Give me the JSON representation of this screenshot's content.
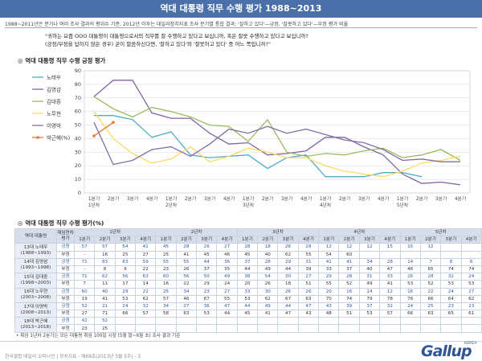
{
  "header": {
    "title": "역대 대통령 직무 수행 평가 1988~2013"
  },
  "subtitle": "1988~2011년은 분기나 여러 조사 결과의 평위수 기준, 2012년 이후는 데일리정치지표 조사 분기별 통합 결과; '잘하고 있다'—긍정, '잘못하고 있다'—부정 평가 비율",
  "question": {
    "line1": "\"귀하는 요즘 OOO 대통령이 대통령으로서의 직무를 잘 수행하고 있다고 보십니까, 혹은 잘못 수행하고 있다고 보십니까?",
    "line2": "(긍정/부정을 답하지 않은 경우) 굳이 말씀하신다면, '잘하고 있다'와 '잘못하고 있다' 중 어느 쪽입니까?\""
  },
  "section1": "역대 대통령 직무 수행 긍정 평가",
  "section2": "역대 대통령 직무 수행 평가(%)",
  "colors": {
    "header": "#4b6fa8",
    "roh": "#4bacc6",
    "kimys": "#8064a2",
    "kimdj": "#9bbb59",
    "rohmh": "#ffd966",
    "lee": "#7f6fa8",
    "park": "#e07b39"
  },
  "chart_data": {
    "type": "line",
    "title": "",
    "xlabel": "",
    "ylabel": "",
    "ylim": [
      0,
      90
    ],
    "yticks": [
      0,
      10,
      20,
      30,
      40,
      50,
      60,
      70,
      80,
      90
    ],
    "x": [
      "1분기 1년차",
      "2분기",
      "3분기",
      "4분기",
      "1분기 2년차",
      "2분기",
      "3분기",
      "4분기",
      "1분기 3년차",
      "2분기",
      "3분기",
      "4분기",
      "1분기 4년차",
      "2분기",
      "3분기",
      "4분기",
      "1분기 5년차",
      "2분기",
      "3분기",
      "4분기"
    ],
    "x_labels": [
      [
        "1분기",
        "1년차"
      ],
      [
        "2분기"
      ],
      [
        "3분기"
      ],
      [
        "4분기"
      ],
      [
        "1분기",
        "2년차"
      ],
      [
        "2분기"
      ],
      [
        "3분기"
      ],
      [
        "4분기"
      ],
      [
        "1분기",
        "3년차"
      ],
      [
        "2분기"
      ],
      [
        "3분기"
      ],
      [
        "4분기"
      ],
      [
        "1분기",
        "4년차"
      ],
      [
        "2분기"
      ],
      [
        "3분기"
      ],
      [
        "4분기"
      ],
      [
        "1분기",
        "5년차"
      ],
      [
        "2분기"
      ],
      [
        "3분기"
      ],
      [
        "4분기"
      ]
    ],
    "legend_position": "left",
    "grid": true,
    "series": [
      {
        "name": "노태우",
        "color": "#4bacc6",
        "values": [
          57,
          57,
          54,
          41,
          45,
          28,
          26,
          27,
          28,
          18,
          26,
          28,
          12,
          12,
          12,
          15,
          15,
          12,
          null,
          null
        ]
      },
      {
        "name": "김영삼",
        "color": "#8064a2",
        "values": [
          71,
          83,
          83,
          59,
          55,
          55,
          44,
          36,
          37,
          28,
          29,
          31,
          41,
          41,
          34,
          28,
          14,
          7,
          8,
          6
        ]
      },
      {
        "name": "김대중",
        "color": "#9bbb59",
        "values": [
          71,
          62,
          56,
          63,
          60,
          56,
          50,
          49,
          38,
          54,
          30,
          27,
          29,
          28,
          31,
          33,
          26,
          28,
          32,
          24
        ]
      },
      {
        "name": "노무현",
        "color": "#ffd966",
        "values": [
          60,
          40,
          29,
          22,
          25,
          34,
          23,
          27,
          33,
          30,
          26,
          26,
          20,
          16,
          14,
          12,
          16,
          22,
          24,
          27
        ]
      },
      {
        "name": "이명박",
        "color": "#7f6fa8",
        "values": [
          52,
          21,
          24,
          32,
          34,
          27,
          36,
          47,
          44,
          49,
          44,
          47,
          43,
          39,
          37,
          32,
          24,
          25,
          23,
          23
        ]
      },
      {
        "name": "박근혜(%)",
        "color": "#e07b39",
        "values": [
          42,
          52,
          null,
          null,
          null,
          null,
          null,
          null,
          null,
          null,
          null,
          null,
          null,
          null,
          null,
          null,
          null,
          null,
          null,
          null
        ]
      }
    ]
  },
  "table": {
    "corner": "역대 대통령",
    "eval_header": "재임연차 평가",
    "years": [
      "1년차",
      "2년차",
      "3년차",
      "4년차",
      "5년차"
    ],
    "quarters": [
      "1분기",
      "2분기",
      "3분기",
      "4분기"
    ],
    "rows": [
      {
        "name": "13대 노태우",
        "period": "(1988~1993)",
        "pos": [
          "57",
          "57",
          "54",
          "41",
          "45",
          "28",
          "26",
          "27",
          "28",
          "18",
          "26",
          "28",
          "12",
          "12",
          "12",
          "15",
          "15",
          "12",
          "",
          ""
        ],
        "neg": [
          "-",
          "16",
          "25",
          "27",
          "25",
          "41",
          "45",
          "46",
          "45",
          "40",
          "62",
          "55",
          "54",
          "60",
          "",
          "",
          "",
          "",
          "",
          ""
        ]
      },
      {
        "name": "14대 김영삼",
        "period": "(1993~1998)",
        "pos": [
          "71",
          "83",
          "83",
          "59",
          "55",
          "55",
          "44",
          "36",
          "37",
          "28",
          "29",
          "31",
          "41",
          "41",
          "34",
          "28",
          "14",
          "7",
          "8",
          "6"
        ],
        "neg": [
          "-",
          "8",
          "9",
          "22",
          "23",
          "26",
          "37",
          "35",
          "44",
          "49",
          "44",
          "39",
          "33",
          "37",
          "40",
          "47",
          "46",
          "65",
          "74",
          "74"
        ]
      },
      {
        "name": "15대 김대중",
        "period": "(1998~2003)",
        "pos": [
          "71",
          "62",
          "56",
          "63",
          "60",
          "56",
          "50",
          "49",
          "38",
          "54",
          "30",
          "27",
          "29",
          "28",
          "31",
          "33",
          "26",
          "28",
          "32",
          "24"
        ],
        "neg": [
          "7",
          "11",
          "17",
          "14",
          "16",
          "22",
          "29",
          "24",
          "20",
          "26",
          "18",
          "51",
          "55",
          "52",
          "49",
          "41",
          "53",
          "52",
          "53",
          "53"
        ]
      },
      {
        "name": "16대 노무현",
        "period": "(2003~2008)",
        "pos": [
          "60",
          "40",
          "29",
          "22",
          "25",
          "34",
          "23",
          "27",
          "33",
          "30",
          "26",
          "26",
          "20",
          "16",
          "14",
          "12",
          "16",
          "22",
          "24",
          "27"
        ],
        "neg": [
          "19",
          "41",
          "53",
          "62",
          "57",
          "46",
          "67",
          "55",
          "53",
          "62",
          "67",
          "63",
          "70",
          "74",
          "79",
          "78",
          "76",
          "66",
          "64",
          "62"
        ]
      },
      {
        "name": "17대 이명박",
        "period": "(2008~2013)",
        "pos": [
          "52",
          "21",
          "24",
          "32",
          "34",
          "27",
          "36",
          "47",
          "44",
          "49",
          "44",
          "47",
          "43",
          "39",
          "37",
          "32",
          "24",
          "25",
          "23",
          "23"
        ],
        "neg": [
          "27",
          "71",
          "66",
          "57",
          "58",
          "63",
          "53",
          "44",
          "45",
          "41",
          "47",
          "43",
          "48",
          "51",
          "53",
          "57",
          "66",
          "63",
          "65",
          "61"
        ]
      },
      {
        "name": "18대 박근혜",
        "period": "(2013~2018)",
        "pos": [
          "42",
          "52",
          "",
          "",
          "",
          "",
          "",
          "",
          "",
          "",
          "",
          "",
          "",
          "",
          "",
          "",
          "",
          "",
          "",
          ""
        ],
        "neg": [
          "23",
          "25",
          "",
          "",
          "",
          "",
          "",
          "",
          "",
          "",
          "",
          "",
          "",
          "",
          "",
          "",
          "",
          "",
          "",
          ""
        ]
      }
    ],
    "label_pos": "긍정",
    "label_neg": "부정"
  },
  "footnote": "• 취임 1년차 2분기는 모든 대통령 취임 100일 시점 (5월 말~6월 초) 조사 결과 기준",
  "footer": "한국갤럽 데일리 오피니언 | 정치지표 - 제69호(2013년 5월 5주) - 3",
  "logo": {
    "text": "Gallup",
    "sub": "KOREA"
  }
}
